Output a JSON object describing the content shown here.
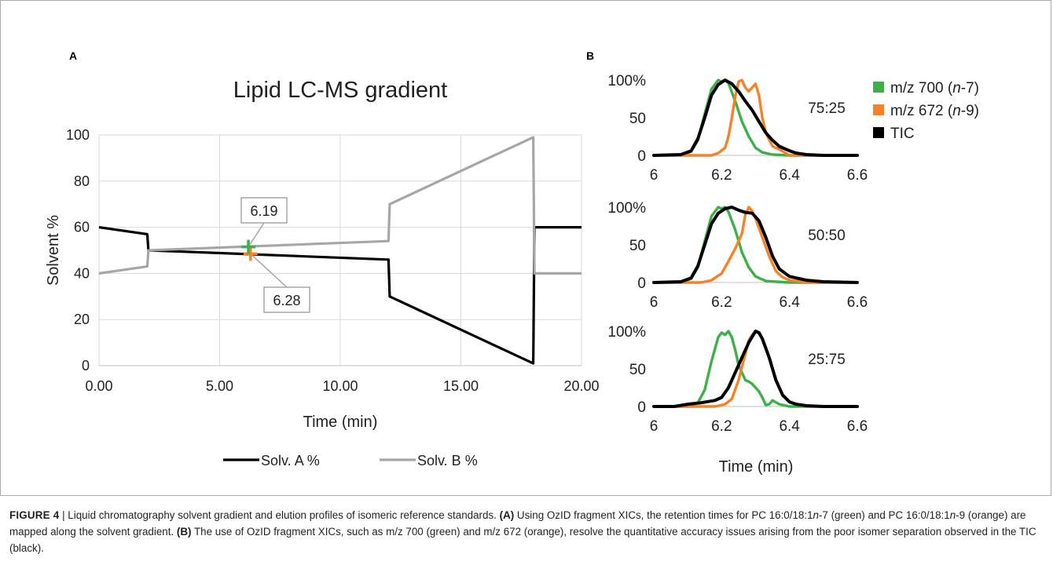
{
  "colors": {
    "solvA": "#000000",
    "solvB": "#a6a6a6",
    "green": "#3eb04a",
    "orange": "#f58229",
    "tic": "#000000",
    "grid": "#d9d9d9"
  },
  "chart_data": [
    {
      "id": "A",
      "type": "line",
      "panel_label": "A",
      "title": "Lipid LC-MS gradient",
      "xlabel": "Time (min)",
      "ylabel": "Solvent %",
      "xlim": [
        0,
        20
      ],
      "ylim": [
        0,
        100
      ],
      "x_ticks": [
        "0.00",
        "5.00",
        "10.00",
        "15.00",
        "20.00"
      ],
      "y_ticks": [
        "0",
        "20",
        "40",
        "60",
        "80",
        "100"
      ],
      "grid": true,
      "legend_position": "bottom",
      "series": [
        {
          "name": "Solv. A %",
          "color": "#000000",
          "x": [
            0,
            2,
            2.05,
            12,
            12.05,
            18,
            18.05,
            20
          ],
          "y": [
            60,
            57,
            50,
            46,
            30,
            1,
            60,
            60
          ]
        },
        {
          "name": "Solv. B %",
          "color": "#a6a6a6",
          "x": [
            0,
            2,
            2.05,
            12,
            12.05,
            18,
            18.05,
            20
          ],
          "y": [
            40,
            43,
            50,
            54,
            70,
            99,
            40,
            40
          ]
        }
      ],
      "markers": [
        {
          "label": "6.19",
          "x": 6.19,
          "y": 51.5,
          "color": "#3eb04a"
        },
        {
          "label": "6.28",
          "x": 6.28,
          "y": 48.5,
          "color": "#f58229"
        }
      ]
    },
    {
      "id": "B",
      "type": "line",
      "panel_label": "B",
      "xlabel": "Time (min)",
      "xlim": [
        6,
        6.6
      ],
      "ylim": [
        0,
        100
      ],
      "x_ticks": [
        "6",
        "6.2",
        "6.4",
        "6.6"
      ],
      "y_ticks": [
        "0",
        "50",
        "100%"
      ],
      "legend": [
        {
          "text": "m/z 700 (",
          "italic": "n",
          "suffix": "-7)",
          "color": "#3eb04a"
        },
        {
          "text": "m/z 672 (",
          "italic": "n",
          "suffix": "-9)",
          "color": "#f58229"
        },
        {
          "text": "TIC",
          "italic": "",
          "suffix": "",
          "color": "#000000"
        }
      ],
      "subplots": [
        {
          "ratio_label": "75:25",
          "series": [
            {
              "name": "m/z 700 (n-7)",
              "color": "#3eb04a",
              "x": [
                6.0,
                6.08,
                6.11,
                6.13,
                6.15,
                6.17,
                6.19,
                6.2,
                6.21,
                6.22,
                6.24,
                6.26,
                6.28,
                6.3,
                6.32,
                6.35,
                6.4,
                6.6
              ],
              "y": [
                0,
                0,
                5,
                20,
                55,
                88,
                100,
                98,
                100,
                96,
                72,
                45,
                25,
                10,
                4,
                1,
                0,
                0
              ]
            },
            {
              "name": "m/z 672 (n-9)",
              "color": "#f58229",
              "x": [
                6.0,
                6.17,
                6.19,
                6.21,
                6.22,
                6.23,
                6.24,
                6.25,
                6.26,
                6.27,
                6.28,
                6.29,
                6.3,
                6.31,
                6.32,
                6.33,
                6.35,
                6.37,
                6.4,
                6.6
              ],
              "y": [
                0,
                0,
                3,
                10,
                25,
                50,
                78,
                98,
                100,
                90,
                85,
                90,
                95,
                80,
                50,
                30,
                12,
                8,
                0,
                0
              ]
            },
            {
              "name": "TIC",
              "color": "#000000",
              "x": [
                6.0,
                6.08,
                6.11,
                6.13,
                6.15,
                6.17,
                6.19,
                6.21,
                6.23,
                6.25,
                6.27,
                6.29,
                6.31,
                6.33,
                6.35,
                6.37,
                6.4,
                6.42,
                6.45,
                6.5,
                6.6
              ],
              "y": [
                0,
                1,
                6,
                22,
                50,
                80,
                94,
                100,
                95,
                85,
                72,
                60,
                45,
                30,
                20,
                12,
                6,
                3,
                1,
                0,
                0
              ]
            }
          ]
        },
        {
          "ratio_label": "50:50",
          "series": [
            {
              "name": "m/z 700 (n-7)",
              "color": "#3eb04a",
              "x": [
                6.0,
                6.08,
                6.11,
                6.13,
                6.15,
                6.17,
                6.19,
                6.2,
                6.21,
                6.22,
                6.24,
                6.26,
                6.28,
                6.3,
                6.33,
                6.36,
                6.4,
                6.6
              ],
              "y": [
                0,
                0,
                5,
                20,
                55,
                88,
                100,
                98,
                100,
                94,
                70,
                40,
                20,
                8,
                2,
                1,
                0,
                0
              ]
            },
            {
              "name": "m/z 672 (n-9)",
              "color": "#f58229",
              "x": [
                6.0,
                6.14,
                6.17,
                6.2,
                6.22,
                6.24,
                6.26,
                6.27,
                6.28,
                6.29,
                6.3,
                6.32,
                6.34,
                6.36,
                6.38,
                6.4,
                6.45,
                6.6
              ],
              "y": [
                0,
                0,
                3,
                12,
                28,
                45,
                65,
                90,
                100,
                95,
                85,
                60,
                35,
                15,
                7,
                3,
                0,
                0
              ]
            },
            {
              "name": "TIC",
              "color": "#000000",
              "x": [
                6.0,
                6.08,
                6.11,
                6.13,
                6.15,
                6.17,
                6.19,
                6.21,
                6.23,
                6.25,
                6.27,
                6.29,
                6.31,
                6.33,
                6.35,
                6.37,
                6.4,
                6.45,
                6.5,
                6.6
              ],
              "y": [
                0,
                1,
                6,
                22,
                50,
                78,
                92,
                98,
                100,
                96,
                93,
                92,
                82,
                60,
                35,
                18,
                8,
                3,
                1,
                0
              ]
            }
          ]
        },
        {
          "ratio_label": "25:75",
          "series": [
            {
              "name": "m/z 700 (n-7)",
              "color": "#3eb04a",
              "x": [
                6.0,
                6.1,
                6.13,
                6.15,
                6.17,
                6.19,
                6.2,
                6.21,
                6.22,
                6.23,
                6.24,
                6.25,
                6.26,
                6.27,
                6.28,
                6.29,
                6.3,
                6.31,
                6.32,
                6.33,
                6.34,
                6.35,
                6.37,
                6.4,
                6.6
              ],
              "y": [
                0,
                0,
                5,
                22,
                60,
                92,
                98,
                95,
                100,
                92,
                75,
                55,
                45,
                35,
                33,
                30,
                25,
                20,
                12,
                2,
                3,
                8,
                3,
                0,
                0
              ]
            },
            {
              "name": "m/z 672 (n-9)",
              "color": "#f58229",
              "x": [
                6.0,
                6.18,
                6.21,
                6.23,
                6.25,
                6.27,
                6.28,
                6.29,
                6.3,
                6.31,
                6.32,
                6.34,
                6.36,
                6.38,
                6.4,
                6.42,
                6.45,
                6.6
              ],
              "y": [
                0,
                0,
                3,
                10,
                35,
                70,
                88,
                95,
                100,
                97,
                90,
                65,
                35,
                15,
                6,
                3,
                0,
                0
              ]
            },
            {
              "name": "TIC",
              "color": "#000000",
              "x": [
                6.0,
                6.06,
                6.1,
                6.14,
                6.18,
                6.2,
                6.22,
                6.24,
                6.26,
                6.28,
                6.3,
                6.31,
                6.32,
                6.34,
                6.36,
                6.38,
                6.4,
                6.42,
                6.45,
                6.5,
                6.6
              ],
              "y": [
                0,
                0,
                3,
                5,
                8,
                12,
                25,
                45,
                65,
                85,
                100,
                98,
                90,
                65,
                35,
                15,
                6,
                3,
                1,
                0,
                0
              ]
            }
          ]
        }
      ]
    }
  ],
  "caption": {
    "label": "FIGURE 4",
    "separator": " | ",
    "intro": "Liquid chromatography solvent gradient and elution profiles of isomeric reference standards. ",
    "part_a_tag": "(A)",
    "part_a_1": " Using OzID fragment XICs, the retention times for PC 16:0/18:1",
    "part_a_n1": "n",
    "part_a_2": "-7 (green) and PC 16:0/18:1",
    "part_a_n2": "n",
    "part_a_3": "-9 (orange) are mapped along the solvent gradient. ",
    "part_b_tag": "(B)",
    "part_b_1": " The use of OzID fragment XICs, such as m/z 700 (green) and m/z 672 (orange), resolve the quantitative accuracy issues arising from the poor isomer separation observed in the TIC (black)."
  }
}
